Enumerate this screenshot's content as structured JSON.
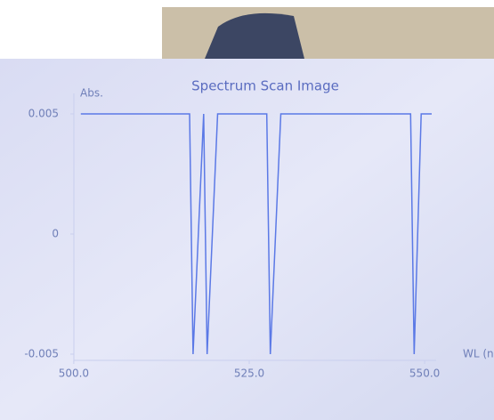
{
  "chart_data": {
    "type": "line",
    "title": "Spectrum Scan Image",
    "y_label": "Abs.",
    "x_label": "WL (nm)",
    "x": [
      501,
      516.5,
      517,
      518.5,
      519,
      520.5,
      527.5,
      528,
      529.5,
      548,
      548.5,
      549.5,
      551
    ],
    "values": [
      0.005,
      0.005,
      -0.005,
      0.005,
      -0.005,
      0.005,
      0.005,
      -0.005,
      0.005,
      0.005,
      -0.005,
      0.005,
      0.005
    ],
    "color": "#5b79e6",
    "xlim": [
      499,
      551
    ],
    "xticks": [
      {
        "value": 500,
        "label": "500.0"
      },
      {
        "value": 525,
        "label": "525.0"
      },
      {
        "value": 550,
        "label": "550.0"
      }
    ],
    "ylim": [
      -0.005,
      0.005
    ],
    "yticks": [
      -0.005,
      0,
      0.005
    ]
  }
}
